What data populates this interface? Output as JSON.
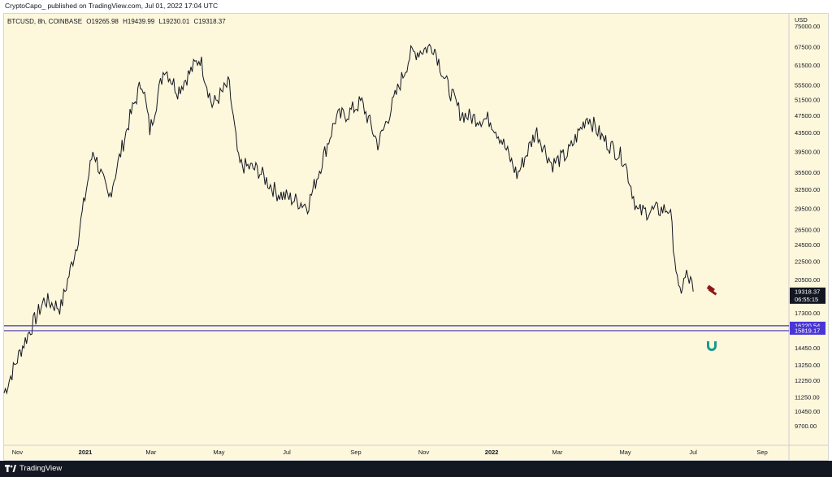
{
  "header": {
    "published_line": "CryptoCapo_ published on TradingView.com, Jul 01, 2022 17:04 UTC"
  },
  "footer": {
    "brand": "TradingView",
    "logo_icon": "tradingview-logo-icon"
  },
  "legend": {
    "symbol": "BTCUSD, 8h, COINBASE",
    "open": "O19265.98",
    "high": "H19439.99",
    "low": "L19230.01",
    "close": "C19318.37"
  },
  "colors": {
    "background": "#fdf7dc",
    "candle": "#131722",
    "support_line": "#3f33b5",
    "support_tag": "#4a36d6",
    "price_tag": "#131722",
    "icon_red": "#8c1a1a",
    "icon_teal": "#1a9a8c"
  },
  "chart_data": {
    "type": "line",
    "title": "",
    "currency_label": "USD",
    "scale": "log",
    "ylim": [
      8800,
      80000
    ],
    "y_ticks": [
      "75000.00",
      "67500.00",
      "61500.00",
      "55500.00",
      "51500.00",
      "47500.00",
      "43500.00",
      "39500.00",
      "35500.00",
      "32500.00",
      "29500.00",
      "26500.00",
      "24500.00",
      "22500.00",
      "20500.00",
      "17300.00",
      "14450.00",
      "13250.00",
      "12250.00",
      "11250.00",
      "10450.00",
      "9700.00"
    ],
    "x_ticks": [
      "Nov",
      "2021",
      "Mar",
      "May",
      "Jul",
      "Sep",
      "Nov",
      "2022",
      "Mar",
      "May",
      "Jul",
      "Sep"
    ],
    "series": [
      {
        "x": [
          "2020-10-20",
          "2020-11-05",
          "2020-11-25",
          "2020-12-10",
          "2020-12-25",
          "2021-01-08",
          "2021-01-22",
          "2021-02-10",
          "2021-02-21",
          "2021-02-28",
          "2021-03-13",
          "2021-03-25",
          "2021-04-14",
          "2021-04-25",
          "2021-05-10",
          "2021-05-19",
          "2021-06-05",
          "2021-06-22",
          "2021-07-20",
          "2021-08-14",
          "2021-08-25",
          "2021-09-06",
          "2021-09-21",
          "2021-10-01",
          "2021-10-20",
          "2021-11-10",
          "2021-11-20",
          "2021-12-04",
          "2021-12-15",
          "2021-12-31",
          "2022-01-10",
          "2022-01-24",
          "2022-02-10",
          "2022-02-24",
          "2022-03-10",
          "2022-03-28",
          "2022-04-10",
          "2022-04-30",
          "2022-05-12",
          "2022-05-25",
          "2022-06-10",
          "2022-06-18",
          "2022-06-25",
          "2022-06-30",
          "2022-07-01"
        ],
        "values": [
          11500,
          14500,
          18500,
          17800,
          25000,
          40000,
          31000,
          47000,
          57000,
          44000,
          61000,
          54000,
          64000,
          50000,
          56000,
          37000,
          36000,
          32000,
          30000,
          47000,
          48000,
          51000,
          41000,
          48000,
          65000,
          68000,
          57000,
          48000,
          47000,
          46500,
          42000,
          35000,
          44000,
          37000,
          39000,
          47500,
          42500,
          38000,
          29000,
          29200,
          29500,
          19000,
          21000,
          20000,
          19318
        ]
      }
    ],
    "horizontal_levels": [
      16220.54,
      15819.17
    ],
    "horizontal_level_labels": [
      "16220.54",
      "15819.17"
    ],
    "last_price": 19318.37,
    "last_price_label": "19318.37",
    "countdown_label": "06:55:15",
    "x_range": [
      "2020-10-20",
      "2022-09-25"
    ]
  }
}
